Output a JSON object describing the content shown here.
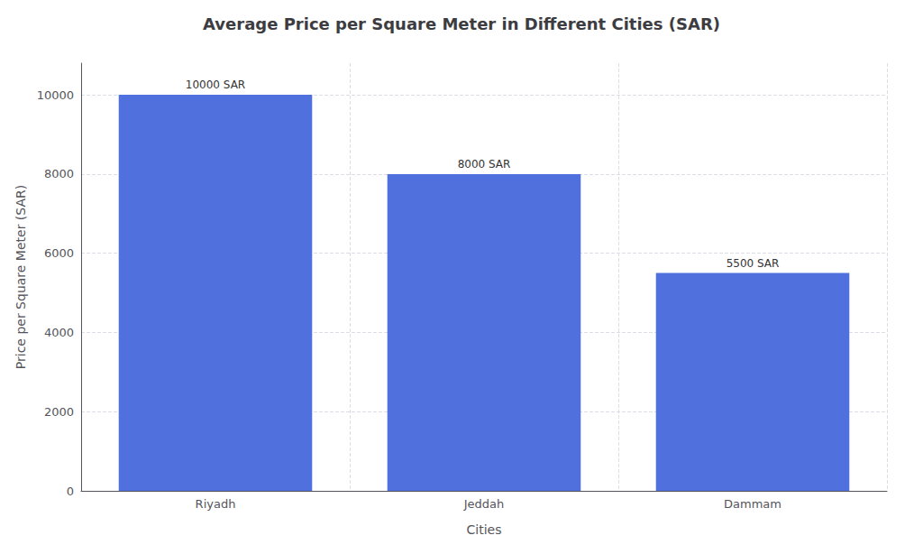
{
  "chart_data": {
    "type": "bar",
    "title": "Average Price per Square Meter in Different Cities (SAR)",
    "xlabel": "Cities",
    "ylabel": "Price per Square Meter (SAR)",
    "categories": [
      "Riyadh",
      "Jeddah",
      "Dammam"
    ],
    "values": [
      10000,
      8000,
      5500
    ],
    "value_labels": [
      "10000 SAR",
      "8000 SAR",
      "5500 SAR"
    ],
    "data_labels": true,
    "ylim": [
      0,
      10800
    ],
    "yticks": [
      0,
      2000,
      4000,
      6000,
      8000,
      10000
    ],
    "grid": true
  }
}
